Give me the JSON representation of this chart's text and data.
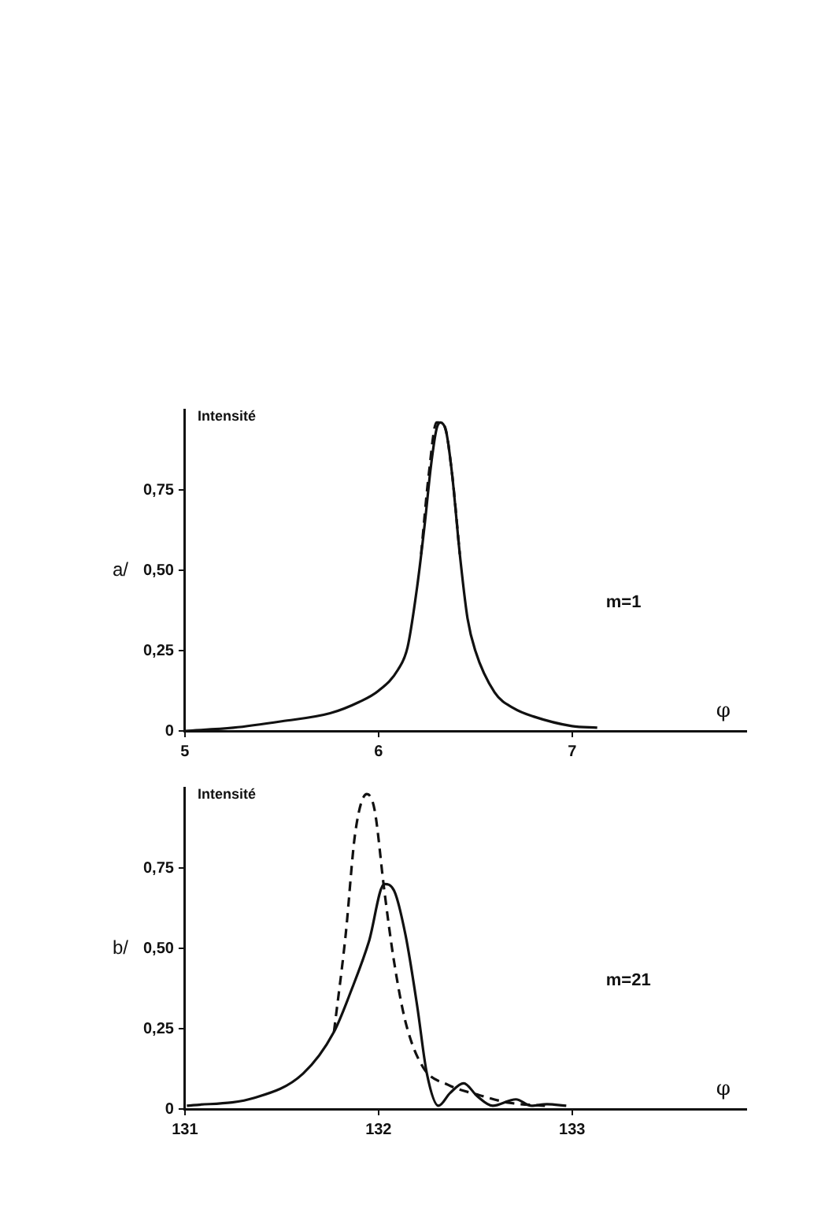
{
  "chart_data": [
    {
      "type": "line",
      "title": "a/",
      "ylabel": "Intensité",
      "xlabel": "φ",
      "annotations": [
        "m=1"
      ],
      "legend": false,
      "grid": false,
      "marker": "none",
      "xlim": [
        5,
        7.9
      ],
      "xticks": [
        5,
        6,
        7
      ],
      "ylim": [
        0,
        1
      ],
      "yticks": [
        0,
        {
          "value": 0.25,
          "label": "0,25"
        },
        {
          "value": 0.5,
          "label": "0,50"
        },
        {
          "value": 0.75,
          "label": "0,75"
        }
      ],
      "series": [
        {
          "color": "#111111",
          "line_style": "solid",
          "x": [
            5.0,
            5.25,
            5.5,
            5.75,
            5.9,
            6.0,
            6.1,
            6.15,
            6.2,
            6.24,
            6.27,
            6.3,
            6.32,
            6.35,
            6.38,
            6.42,
            6.46,
            6.5,
            6.6,
            6.7,
            6.8,
            7.0,
            7.13
          ],
          "values": [
            0.0,
            0.01,
            0.03,
            0.055,
            0.09,
            0.125,
            0.19,
            0.26,
            0.45,
            0.65,
            0.82,
            0.94,
            0.96,
            0.93,
            0.8,
            0.55,
            0.35,
            0.25,
            0.12,
            0.07,
            0.045,
            0.015,
            0.01
          ]
        },
        {
          "color": "#111111",
          "line_style": "dashed",
          "x": [
            6.22,
            6.26,
            6.3,
            6.34,
            6.38,
            6.42
          ],
          "values": [
            0.55,
            0.8,
            0.96,
            0.95,
            0.8,
            0.55
          ]
        }
      ]
    },
    {
      "type": "line",
      "title": "b/",
      "ylabel": "Intensité",
      "xlabel": "φ",
      "annotations": [
        "m=21"
      ],
      "legend": false,
      "grid": false,
      "marker": "none",
      "xlim": [
        131,
        133.9
      ],
      "xticks": [
        131,
        132,
        133
      ],
      "ylim": [
        0,
        1
      ],
      "yticks": [
        0,
        {
          "value": 0.25,
          "label": "0,25"
        },
        {
          "value": 0.5,
          "label": "0,50"
        },
        {
          "value": 0.75,
          "label": "0,75"
        }
      ],
      "series": [
        {
          "color": "#111111",
          "line_style": "solid",
          "x": [
            131.01,
            131.36,
            131.61,
            131.77,
            131.86,
            131.95,
            132.03,
            132.08,
            132.14,
            132.2,
            132.25,
            132.31,
            132.37,
            132.44,
            132.51,
            132.59,
            132.71,
            132.79,
            132.87,
            132.97
          ],
          "values": [
            0.01,
            0.035,
            0.11,
            0.24,
            0.37,
            0.52,
            0.7,
            0.68,
            0.54,
            0.32,
            0.11,
            0.01,
            0.05,
            0.08,
            0.04,
            0.01,
            0.03,
            0.01,
            0.015,
            0.01
          ]
        },
        {
          "color": "#111111",
          "line_style": "dashed",
          "x": [
            131.77,
            131.83,
            131.88,
            131.94,
            131.98,
            132.03,
            132.08,
            132.14,
            132.23,
            132.36,
            132.51,
            132.67,
            132.86
          ],
          "values": [
            0.24,
            0.54,
            0.86,
            0.98,
            0.93,
            0.68,
            0.46,
            0.27,
            0.13,
            0.075,
            0.045,
            0.02,
            0.01
          ]
        }
      ]
    }
  ]
}
